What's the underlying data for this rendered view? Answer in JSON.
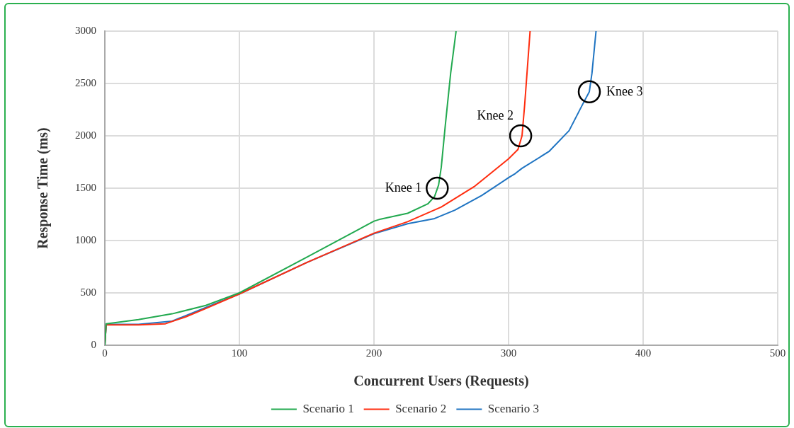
{
  "chart_data": {
    "type": "line",
    "xlabel": "Concurrent Users (Requests)",
    "ylabel": "Response Time (ms)",
    "xlim": [
      0,
      500
    ],
    "xticks": [
      0,
      100,
      200,
      300,
      400,
      500
    ],
    "ylim": [
      0,
      3000
    ],
    "yticks": [
      0,
      500,
      1000,
      1500,
      2000,
      2500,
      3000
    ],
    "grid": true,
    "legend": "bottom",
    "marker": "none",
    "line_style": "solid",
    "series": [
      {
        "name": "Scenario 1",
        "color": "#22a94f",
        "x": [
          0,
          1,
          25,
          50,
          75,
          100,
          150,
          200,
          205,
          225,
          240,
          245,
          248,
          250,
          253,
          257,
          261
        ],
        "values": [
          0,
          205,
          245,
          300,
          380,
          500,
          840,
          1185,
          1205,
          1260,
          1350,
          1420,
          1530,
          1700,
          2100,
          2600,
          3000
        ]
      },
      {
        "name": "Scenario 2",
        "color": "#ff2d0f",
        "x": [
          0,
          1,
          25,
          45,
          60,
          75,
          100,
          150,
          200,
          225,
          250,
          275,
          300,
          307,
          310,
          312,
          316
        ],
        "values": [
          0,
          195,
          195,
          205,
          270,
          350,
          490,
          790,
          1070,
          1180,
          1320,
          1520,
          1780,
          1870,
          2000,
          2300,
          3000
        ]
      },
      {
        "name": "Scenario 3",
        "color": "#1f74c2",
        "x": [
          0,
          1,
          25,
          50,
          75,
          100,
          150,
          200,
          225,
          245,
          260,
          280,
          300,
          305,
          310,
          330,
          345,
          355,
          360,
          362,
          365
        ],
        "values": [
          0,
          200,
          200,
          230,
          360,
          490,
          790,
          1065,
          1160,
          1210,
          1290,
          1430,
          1600,
          1640,
          1690,
          1850,
          2050,
          2300,
          2420,
          2600,
          3000
        ]
      }
    ],
    "annotations": [
      {
        "text": "Knee 1",
        "x": 247,
        "y": 1500
      },
      {
        "text": "Knee 2",
        "x": 309,
        "y": 2000
      },
      {
        "text": "Knee 3",
        "x": 360,
        "y": 2420
      }
    ]
  }
}
